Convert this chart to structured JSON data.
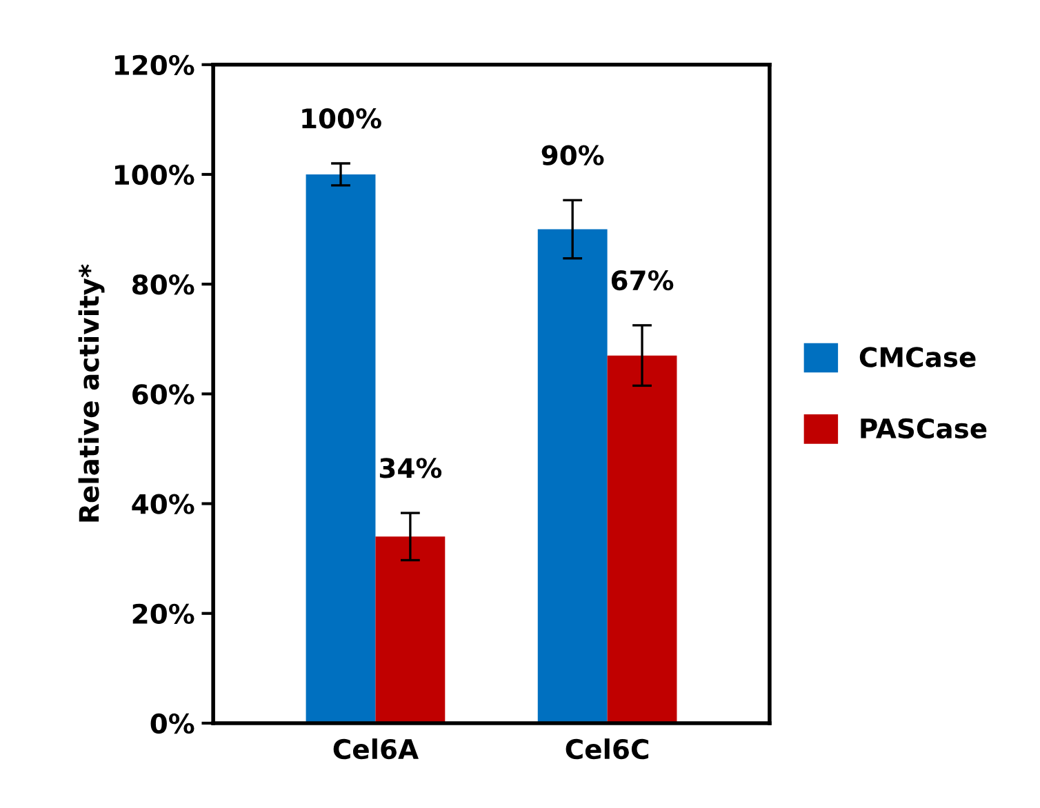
{
  "chart_data": {
    "type": "bar",
    "ylabel": "Relative activity*",
    "categories": [
      "Cel6A",
      "Cel6C"
    ],
    "series": [
      {
        "name": "CMCase",
        "color": "#0070c0",
        "values": [
          100,
          90
        ],
        "errors": [
          2,
          5.3
        ],
        "value_labels": [
          "100%",
          "90%"
        ]
      },
      {
        "name": "PASCase",
        "color": "#c00000",
        "values": [
          34,
          67
        ],
        "errors": [
          4.3,
          5.5
        ],
        "value_labels": [
          "34%",
          "67%"
        ]
      }
    ],
    "ylim": [
      0,
      120
    ],
    "yticks": [
      {
        "value": 0,
        "label": "0%"
      },
      {
        "value": 20,
        "label": "20%"
      },
      {
        "value": 40,
        "label": "40%"
      },
      {
        "value": 60,
        "label": "60%"
      },
      {
        "value": 80,
        "label": "80%"
      },
      {
        "value": 100,
        "label": "100%"
      },
      {
        "value": 120,
        "label": "120%"
      }
    ],
    "grid": false,
    "legend": "right"
  }
}
